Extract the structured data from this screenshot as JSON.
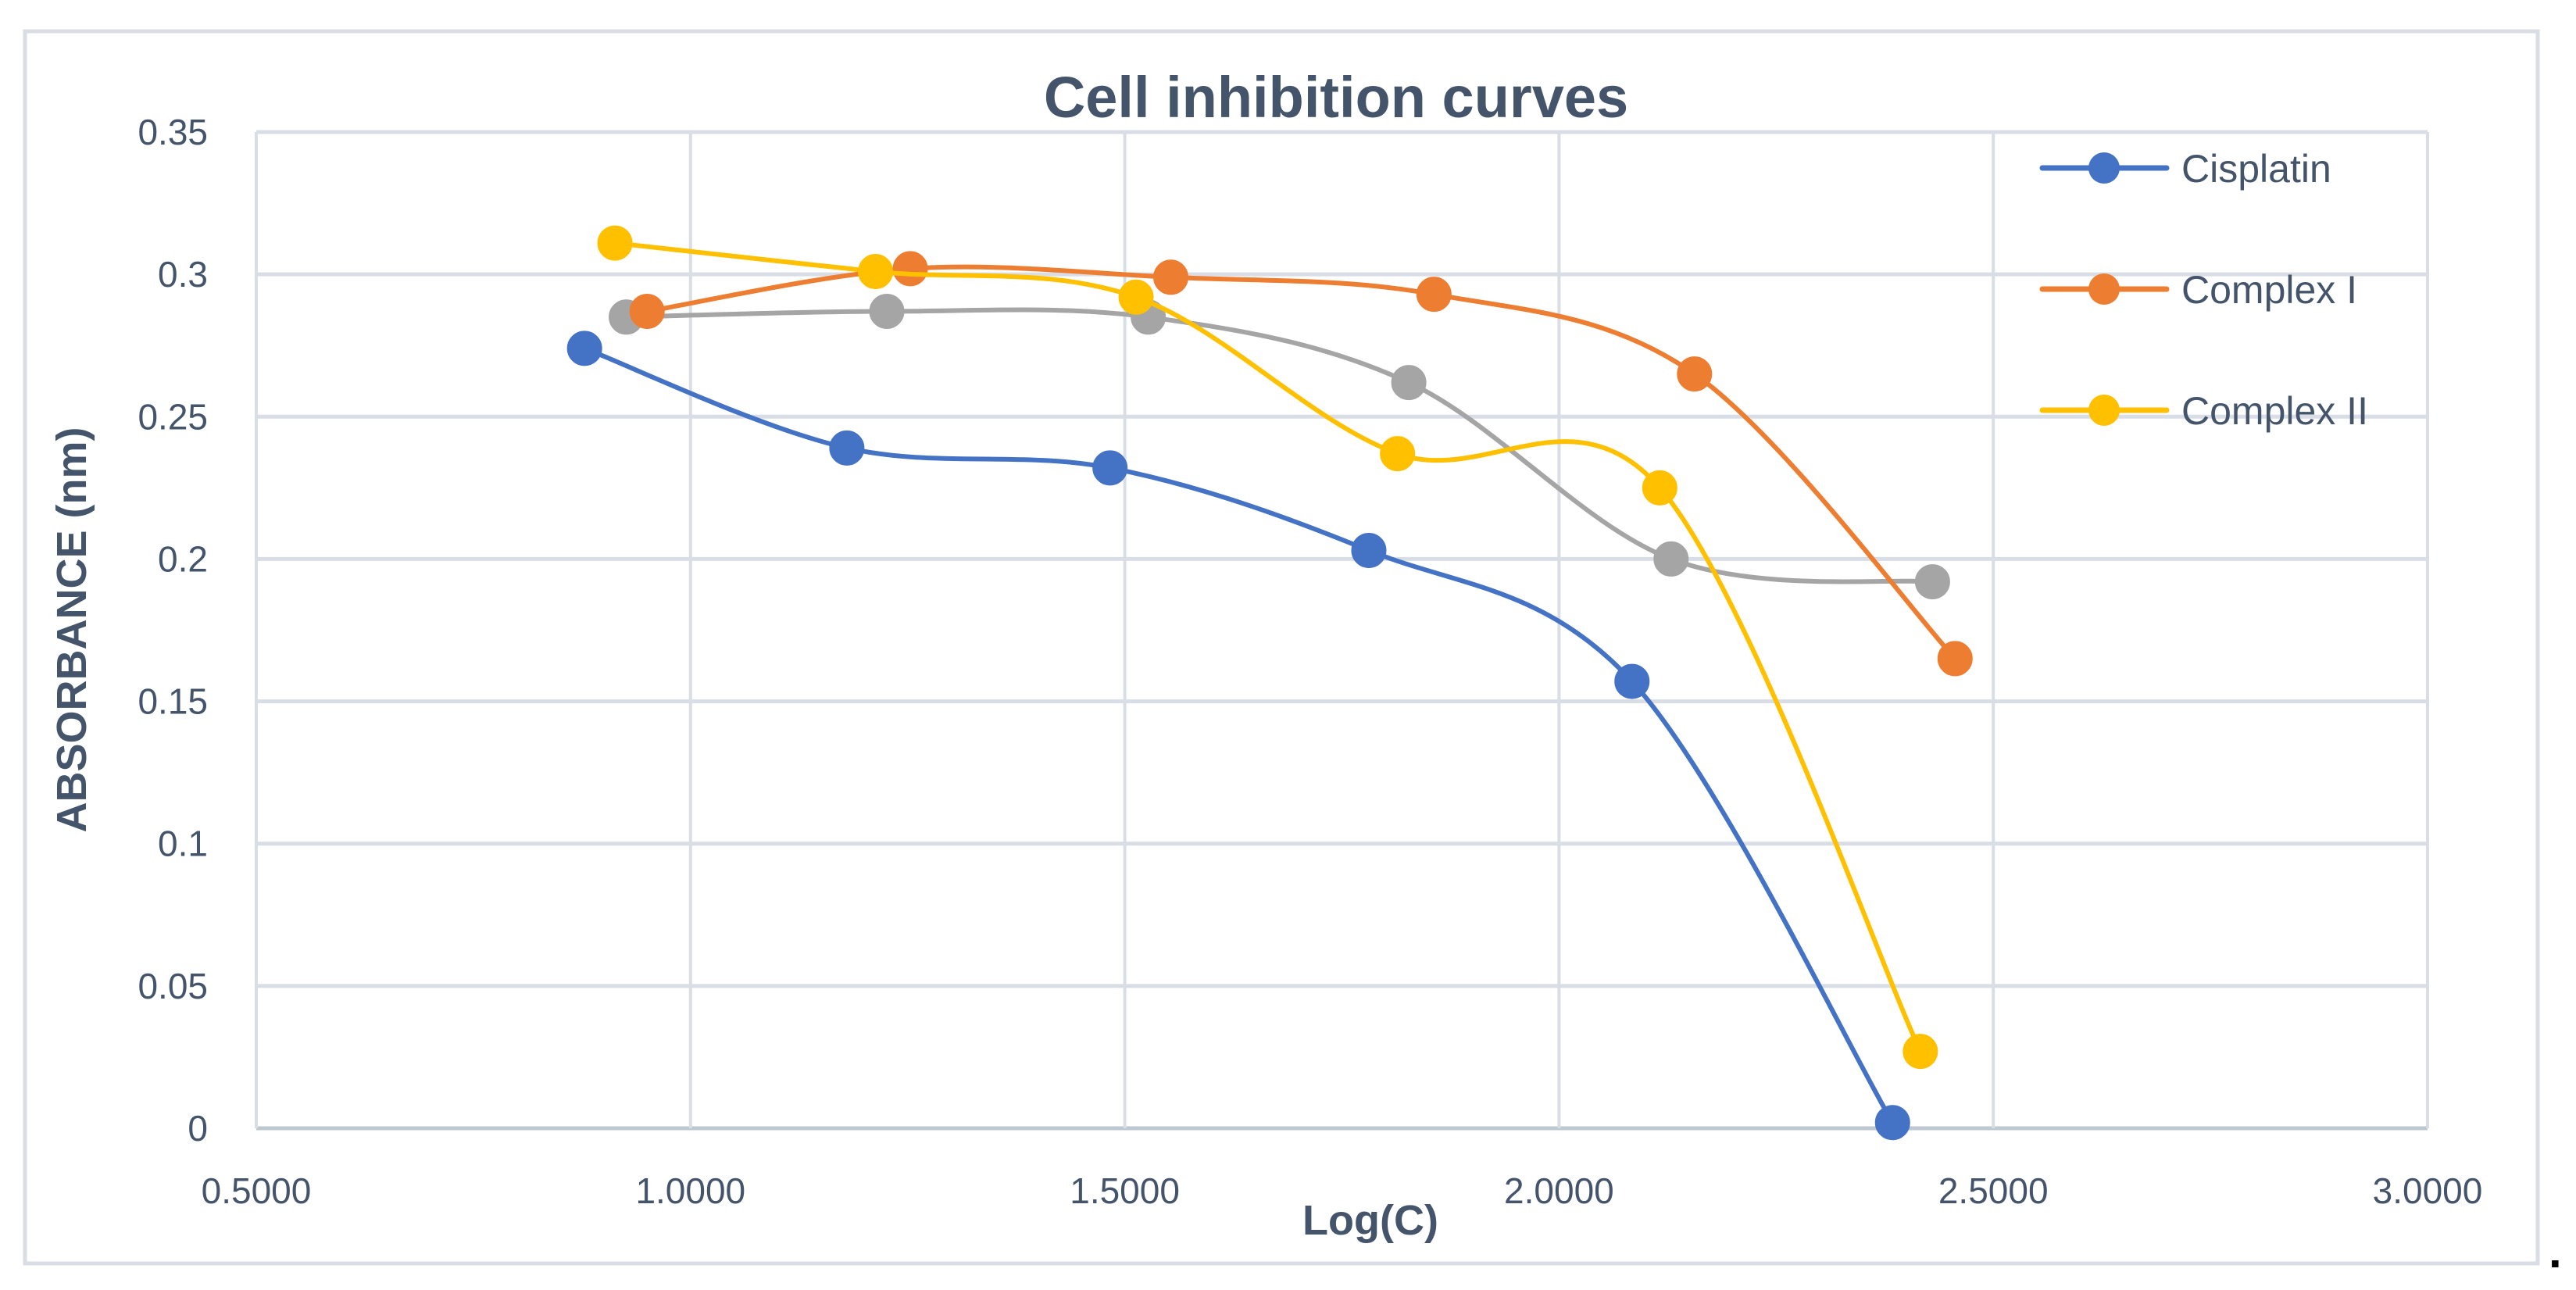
{
  "chart_data": {
    "type": "line",
    "title": "Cell inhibition curves",
    "xlabel": "Log(C)",
    "ylabel": "ABSORBANCE (nm)",
    "xlim": [
      0.5,
      3.0
    ],
    "ylim": [
      0,
      0.35
    ],
    "xticks": [
      "0.5000",
      "1.0000",
      "1.5000",
      "2.0000",
      "2.5000",
      "3.0000"
    ],
    "xtick_values": [
      0.5,
      1.0,
      1.5,
      2.0,
      2.5,
      3.0
    ],
    "yticks": [
      "0",
      "0.05",
      "0.1",
      "0.15",
      "0.2",
      "0.25",
      "0.3",
      "0.35"
    ],
    "ytick_values": [
      0,
      0.05,
      0.1,
      0.15,
      0.2,
      0.25,
      0.3,
      0.35
    ],
    "grid": true,
    "smooth": true,
    "legend_position": "top-right",
    "series": [
      {
        "name": "Cisplatin",
        "color": "#4472C4",
        "in_legend": true,
        "x": [
          0.878,
          1.18,
          1.483,
          1.781,
          2.084,
          2.384
        ],
        "y": [
          0.274,
          0.239,
          0.232,
          0.203,
          0.157,
          0.002
        ]
      },
      {
        "name": "Complex I",
        "color": "#ED7D31",
        "in_legend": true,
        "x": [
          0.95,
          1.253,
          1.553,
          1.856,
          2.156,
          2.456
        ],
        "y": [
          0.287,
          0.302,
          0.299,
          0.293,
          0.265,
          0.165
        ]
      },
      {
        "name": "Complex II",
        "color": "#FFC000",
        "in_legend": true,
        "x": [
          0.913,
          1.213,
          1.513,
          1.814,
          2.116,
          2.416
        ],
        "y": [
          0.311,
          0.301,
          0.292,
          0.237,
          0.225,
          0.027
        ]
      },
      {
        "name": "",
        "color": "#A5A5A5",
        "in_legend": false,
        "x": [
          0.926,
          1.226,
          1.527,
          1.827,
          2.129,
          2.43
        ],
        "y": [
          0.285,
          0.287,
          0.285,
          0.262,
          0.2,
          0.192
        ]
      }
    ]
  },
  "trailing_mark": "."
}
